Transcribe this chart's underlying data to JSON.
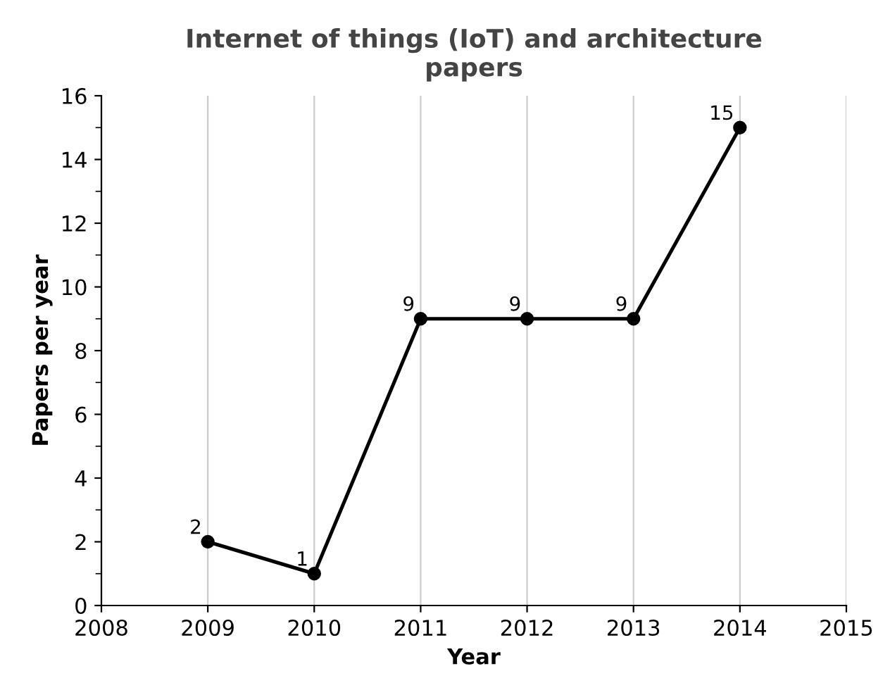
{
  "chart_data": {
    "type": "line",
    "title": "Internet of things (IoT) and architecture\npapers",
    "xlabel": "Year",
    "ylabel": "Papers per year",
    "x": [
      2009,
      2010,
      2011,
      2012,
      2013,
      2014
    ],
    "series": [
      {
        "color": "#000000",
        "values": [
          2,
          1,
          9,
          9,
          9,
          15
        ]
      }
    ],
    "xlim": [
      2008,
      2015
    ],
    "xticks": [
      2008,
      2009,
      2010,
      2011,
      2012,
      2013,
      2014,
      2015
    ],
    "ylim": [
      0,
      16
    ],
    "yticks": [
      0,
      {
        "value": 1,
        "label": null
      },
      2,
      {
        "value": 3,
        "label": null
      },
      4,
      {
        "value": 5,
        "label": null
      },
      6,
      {
        "value": 7,
        "label": null
      },
      8,
      {
        "value": 9,
        "label": null
      },
      10,
      {
        "value": 11,
        "label": null
      },
      12,
      {
        "value": 13,
        "label": null
      },
      14,
      {
        "value": 15,
        "label": null
      },
      16
    ],
    "grid": "x",
    "marker": "circle",
    "line_style": "solid",
    "data_labels": true
  }
}
